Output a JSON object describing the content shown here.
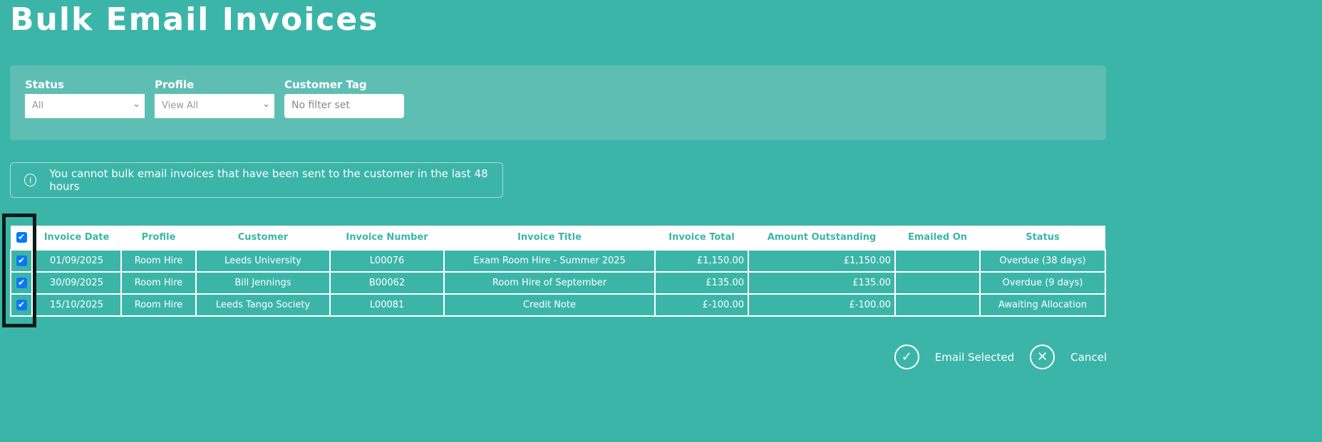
{
  "title": "Bulk Email Invoices",
  "filters": {
    "status": {
      "label": "Status",
      "value": "All"
    },
    "profile": {
      "label": "Profile",
      "value": "View All"
    },
    "customer_tag": {
      "label": "Customer Tag",
      "placeholder": "No filter set"
    }
  },
  "notice": {
    "icon": "info-icon",
    "text": "You cannot bulk email invoices that have been sent to the customer in the last 48 hours"
  },
  "table": {
    "select_all_checked": true,
    "columns": [
      "Invoice Date",
      "Profile",
      "Customer",
      "Invoice Number",
      "Invoice Title",
      "Invoice Total",
      "Amount Outstanding",
      "Emailed On",
      "Status"
    ],
    "rows": [
      {
        "checked": true,
        "date": "01/09/2025",
        "profile": "Room Hire",
        "customer": "Leeds University",
        "number": "L00076",
        "title": "Exam Room Hire - Summer 2025",
        "total": "£1,150.00",
        "outstanding": "£1,150.00",
        "emailed": "",
        "status": "Overdue (38 days)"
      },
      {
        "checked": true,
        "date": "30/09/2025",
        "profile": "Room Hire",
        "customer": "Bill Jennings",
        "number": "B00062",
        "title": "Room Hire of September",
        "total": "£135.00",
        "outstanding": "£135.00",
        "emailed": "",
        "status": "Overdue (9 days)"
      },
      {
        "checked": true,
        "date": "15/10/2025",
        "profile": "Room Hire",
        "customer": "Leeds Tango Society",
        "number": "L00081",
        "title": "Credit Note",
        "total": "£-100.00",
        "outstanding": "£-100.00",
        "emailed": "",
        "status": "Awaiting Allocation"
      }
    ]
  },
  "actions": {
    "email_selected": "Email Selected",
    "cancel": "Cancel"
  },
  "colors": {
    "background": "#3cb5a9",
    "panel": "#5ebeb4",
    "checkbox": "#0a78f5",
    "highlight": "#0b1a17"
  }
}
